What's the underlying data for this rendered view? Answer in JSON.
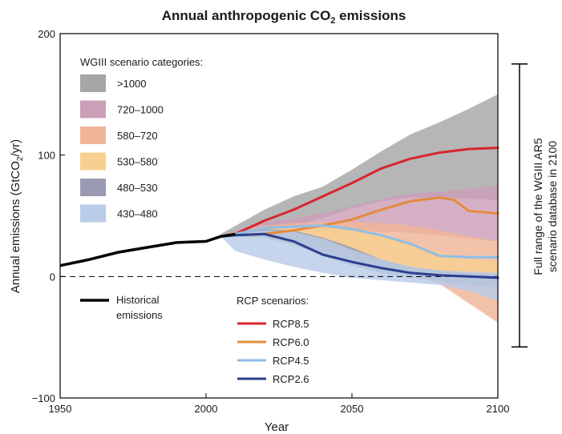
{
  "chart_data": {
    "type": "area",
    "title": {
      "main": "Annual anthropogenic CO",
      "sub": "2",
      "rest": " emissions"
    },
    "xlabel": "Year",
    "ylabel": {
      "main": "Annual emissions (GtCO",
      "sub": "2",
      "rest": "/yr)"
    },
    "xlim": [
      1950,
      2100
    ],
    "ylim": [
      -100,
      200
    ],
    "xticks": [
      "1950",
      "2000",
      "2050",
      "2100"
    ],
    "yticks": [
      "200",
      "100",
      "0",
      "−100"
    ],
    "zero_line": "dashed",
    "grid": false,
    "legend": {
      "categories_title": "WGIII scenario categories:",
      "categories": [
        {
          "label": ">1000",
          "color": "#a6a6a6"
        },
        {
          "label": "720–1000",
          "color": "#cc9fb7"
        },
        {
          "label": "580–720",
          "color": "#f0b497"
        },
        {
          "label": "530–580",
          "color": "#f7d08f"
        },
        {
          "label": "480–530",
          "color": "#9a9bb2"
        },
        {
          "label": "430–480",
          "color": "#b9cce8"
        }
      ],
      "historical_label_line1": "Historical",
      "historical_label_line2": "emissions",
      "rcp_title": "RCP scenarios:",
      "rcp": [
        {
          "label": "RCP8.5",
          "color": "#d7262d"
        },
        {
          "label": "RCP6.0",
          "color": "#e48b3e"
        },
        {
          "label": "RCP4.5",
          "color": "#8fbde6"
        },
        {
          "label": "RCP2.6",
          "color": "#2c3f8f"
        }
      ]
    },
    "range_label": {
      "line1": "Full range of the WGIII AR5",
      "line2": "scenario database in 2100",
      "range": [
        -58,
        175
      ]
    },
    "historical": {
      "name": "Historical emissions",
      "color": "#000000",
      "x": [
        1950,
        1960,
        1970,
        1980,
        1990,
        2000,
        2005,
        2010
      ],
      "y": [
        9,
        14,
        20,
        24,
        28,
        29,
        33,
        35
      ]
    },
    "bands": [
      {
        "name": ">1000",
        "color": "#a6a6a6",
        "x": [
          2005,
          2020,
          2030,
          2040,
          2050,
          2060,
          2070,
          2080,
          2090,
          2100
        ],
        "upper": [
          35,
          55,
          66,
          74,
          88,
          103,
          117,
          127,
          138,
          150
        ],
        "lower": [
          33,
          34,
          42,
          48,
          56,
          62,
          65,
          65,
          64,
          63
        ]
      },
      {
        "name": "720–1000",
        "color": "#cc9fb7",
        "x": [
          2005,
          2020,
          2030,
          2040,
          2050,
          2060,
          2070,
          2080,
          2090,
          2100
        ],
        "upper": [
          34,
          45,
          48,
          52,
          58,
          64,
          68,
          70,
          72,
          75
        ],
        "lower": [
          33,
          34,
          36,
          38,
          38,
          37,
          36,
          34,
          31,
          29
        ]
      },
      {
        "name": "580–720",
        "color": "#f0b497",
        "x": [
          2005,
          2020,
          2030,
          2040,
          2050,
          2060,
          2070,
          2080,
          2090,
          2100
        ],
        "upper": [
          34,
          42,
          44,
          45,
          45,
          44,
          42,
          38,
          33,
          29
        ],
        "lower": [
          33,
          33,
          30,
          24,
          16,
          8,
          2,
          -6,
          -22,
          -38
        ]
      },
      {
        "name": "530–580",
        "color": "#f7d08f",
        "x": [
          2005,
          2020,
          2030,
          2040,
          2050,
          2060,
          2070,
          2080,
          2090,
          2100
        ],
        "upper": [
          34,
          41,
          42,
          41,
          39,
          34,
          27,
          20,
          14,
          12
        ],
        "lower": [
          33,
          33,
          30,
          23,
          14,
          6,
          2,
          -1,
          -5,
          -9
        ]
      },
      {
        "name": "480–530",
        "color": "#9a9bb2",
        "x": [
          2005,
          2020,
          2030,
          2040,
          2050,
          2060,
          2070,
          2080,
          2090,
          2100
        ],
        "upper": [
          34,
          39,
          38,
          32,
          24,
          14,
          8,
          5,
          3,
          2
        ],
        "lower": [
          33,
          32,
          26,
          17,
          9,
          3,
          -1,
          -4,
          -7,
          -9
        ]
      },
      {
        "name": "430–480",
        "color": "#b9cce8",
        "x": [
          2005,
          2010,
          2020,
          2030,
          2040,
          2050,
          2060,
          2070,
          2080,
          2090,
          2100
        ],
        "upper": [
          34,
          36,
          38,
          37,
          31,
          22,
          14,
          8,
          5,
          4,
          3
        ],
        "lower": [
          33,
          21,
          14,
          8,
          3,
          -1,
          -3,
          -5,
          -7,
          -12,
          -20
        ]
      }
    ],
    "series": [
      {
        "name": "RCP8.5",
        "color": "#d7262d",
        "x": [
          2005,
          2010,
          2020,
          2030,
          2040,
          2050,
          2060,
          2070,
          2080,
          2090,
          2100
        ],
        "y": [
          33,
          35,
          46,
          55,
          66,
          77,
          89,
          97,
          102,
          105,
          106
        ]
      },
      {
        "name": "RCP6.0",
        "color": "#e48b3e",
        "x": [
          2005,
          2010,
          2020,
          2030,
          2040,
          2050,
          2060,
          2070,
          2080,
          2085,
          2090,
          2100
        ],
        "y": [
          33,
          34,
          35,
          38,
          42,
          47,
          55,
          62,
          65,
          63,
          54,
          52
        ]
      },
      {
        "name": "RCP4.5",
        "color": "#8fbde6",
        "x": [
          2005,
          2010,
          2020,
          2030,
          2040,
          2050,
          2060,
          2070,
          2080,
          2090,
          2100
        ],
        "y": [
          33,
          35,
          40,
          41,
          42,
          39,
          34,
          27,
          17,
          16,
          16
        ]
      },
      {
        "name": "RCP2.6",
        "color": "#2c3f8f",
        "x": [
          2005,
          2010,
          2020,
          2030,
          2040,
          2050,
          2060,
          2070,
          2080,
          2090,
          2100
        ],
        "y": [
          33,
          34,
          35,
          29,
          18,
          12,
          7,
          3,
          1,
          0,
          -1
        ]
      }
    ]
  }
}
